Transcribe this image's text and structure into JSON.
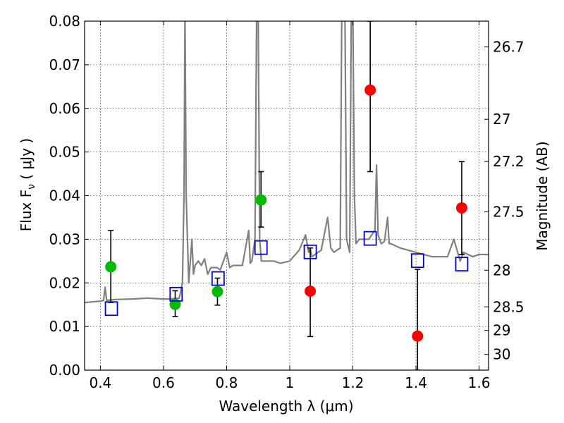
{
  "chart_data": {
    "type": "scatter",
    "xlabel": "Wavelength  λ (μm)",
    "ylabel": "Flux  F",
    "ylabel_sub": "ν",
    "ylabel_units": "  ( μJy )",
    "y2label": "Magnitude (AB)",
    "xlim": [
      0.35,
      1.63
    ],
    "ylim": [
      0.0,
      0.08
    ],
    "grid": true,
    "x_ticks": [
      0.4,
      0.6,
      0.8,
      1.0,
      1.2,
      1.4,
      1.6
    ],
    "x_tick_labels": [
      "0.4",
      "0.6",
      "0.8",
      "1",
      "1.2",
      "1.4",
      "1.6"
    ],
    "y_ticks": [
      0.0,
      0.01,
      0.02,
      0.03,
      0.04,
      0.05,
      0.06,
      0.07,
      0.08
    ],
    "y_tick_labels": [
      "0.00",
      "0.01",
      "0.02",
      "0.03",
      "0.04",
      "0.05",
      "0.06",
      "0.07",
      "0.08"
    ],
    "y2_ticks": [
      {
        "flux": 0.0741,
        "label": "26.7"
      },
      {
        "flux": 0.0575,
        "label": "27"
      },
      {
        "flux": 0.0478,
        "label": "27.2"
      },
      {
        "flux": 0.0363,
        "label": "27.5"
      },
      {
        "flux": 0.0229,
        "label": "28"
      },
      {
        "flux": 0.0145,
        "label": "28.5"
      },
      {
        "flux": 0.0091,
        "label": "29"
      },
      {
        "flux": 0.0036,
        "label": "30"
      }
    ],
    "series": [
      {
        "type": "line",
        "color": "#808080",
        "x": [
          0.35,
          0.4,
          0.41,
          0.415,
          0.42,
          0.45,
          0.5,
          0.55,
          0.6,
          0.62,
          0.65,
          0.66,
          0.665,
          0.668,
          0.672,
          0.68,
          0.69,
          0.695,
          0.7,
          0.71,
          0.72,
          0.73,
          0.74,
          0.75,
          0.77,
          0.78,
          0.8,
          0.81,
          0.82,
          0.85,
          0.87,
          0.875,
          0.88,
          0.89,
          0.895,
          0.9,
          0.905,
          0.91,
          0.92,
          0.95,
          0.97,
          1.0,
          1.03,
          1.05,
          1.06,
          1.065,
          1.07,
          1.1,
          1.12,
          1.13,
          1.14,
          1.16,
          1.165,
          1.17,
          1.175,
          1.18,
          1.19,
          1.195,
          1.2,
          1.205,
          1.21,
          1.22,
          1.25,
          1.27,
          1.275,
          1.28,
          1.29,
          1.3,
          1.31,
          1.315,
          1.32,
          1.35,
          1.4,
          1.45,
          1.5,
          1.52,
          1.54,
          1.55,
          1.58,
          1.6,
          1.63
        ],
        "y": [
          0.0155,
          0.0158,
          0.016,
          0.019,
          0.016,
          0.0162,
          0.0163,
          0.0165,
          0.0163,
          0.0163,
          0.0165,
          0.02,
          0.04,
          0.082,
          0.04,
          0.02,
          0.03,
          0.022,
          0.024,
          0.025,
          0.024,
          0.0255,
          0.022,
          0.0235,
          0.0235,
          0.023,
          0.027,
          0.0235,
          0.024,
          0.024,
          0.032,
          0.0245,
          0.025,
          0.03,
          0.082,
          0.082,
          0.03,
          0.025,
          0.025,
          0.025,
          0.0245,
          0.025,
          0.0275,
          0.031,
          0.027,
          0.028,
          0.026,
          0.0275,
          0.035,
          0.028,
          0.027,
          0.028,
          0.082,
          0.082,
          0.082,
          0.03,
          0.027,
          0.082,
          0.082,
          0.04,
          0.029,
          0.03,
          0.03,
          0.032,
          0.047,
          0.031,
          0.029,
          0.0295,
          0.035,
          0.029,
          0.029,
          0.028,
          0.027,
          0.026,
          0.026,
          0.03,
          0.025,
          0.027,
          0.026,
          0.0265,
          0.0265
        ]
      },
      {
        "type": "scatter",
        "marker": "circle",
        "color": "#00bb00",
        "x": [
          0.433,
          0.637,
          0.771,
          0.909
        ],
        "y": [
          0.0237,
          0.0151,
          0.018,
          0.039
        ],
        "yerr_low": [
          0.0155,
          0.0123,
          0.0149,
          0.0328
        ],
        "yerr_high": [
          0.032,
          0.0182,
          0.0211,
          0.0455
        ]
      },
      {
        "type": "scatter",
        "marker": "circle",
        "color": "#ff0000",
        "x": [
          1.065,
          1.255,
          1.405,
          1.545
        ],
        "y": [
          0.0181,
          0.0642,
          0.0078,
          0.0372
        ],
        "yerr_low": [
          0.0077,
          0.0455,
          0.0,
          0.0265
        ],
        "yerr_high": [
          0.028,
          0.08,
          0.0231,
          0.0478
        ]
      },
      {
        "type": "scatter",
        "marker": "square-open",
        "color": "#0000dd",
        "x": [
          0.435,
          0.64,
          0.773,
          0.909,
          1.065,
          1.255,
          1.405,
          1.545
        ],
        "y": [
          0.0141,
          0.0174,
          0.021,
          0.0281,
          0.0271,
          0.0302,
          0.0251,
          0.0243
        ]
      }
    ]
  }
}
